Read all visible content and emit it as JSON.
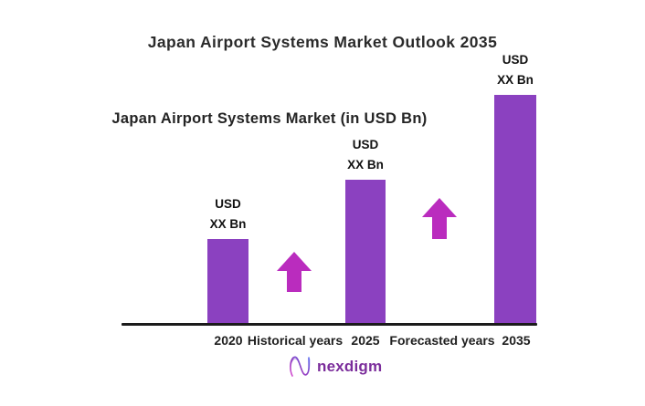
{
  "title": "Japan Airport Systems Market Outlook 2035",
  "subtitle": "Japan Airport Systems Market (in USD Bn)",
  "colors": {
    "bar": "#8B41C0",
    "arrow": "#BA2CBE",
    "axis": "#1B1B1B",
    "logo_text": "#7B2D9B"
  },
  "chart_data": {
    "type": "bar",
    "title": "Japan Airport Systems Market Outlook 2035",
    "subtitle": "Japan Airport Systems Market (in USD Bn)",
    "categories": [
      "2020",
      "2025",
      "2035"
    ],
    "values": [
      "XX",
      "XX",
      "XX"
    ],
    "unit": "USD Bn",
    "relative_heights": [
      0.37,
      0.63,
      1.0
    ],
    "bars": [
      {
        "year": "2020",
        "label_line1": "USD",
        "label_line2": "XX Bn"
      },
      {
        "year": "2025",
        "label_line1": "USD",
        "label_line2": "XX Bn"
      },
      {
        "year": "2035",
        "label_line1": "USD",
        "label_line2": "XX Bn"
      }
    ],
    "period_annotations": [
      {
        "label": "Historical years",
        "between": [
          "2020",
          "2025"
        ]
      },
      {
        "label": "Forecasted years",
        "between": [
          "2025",
          "2035"
        ]
      }
    ],
    "xlabel": "",
    "ylabel": "",
    "grid": false,
    "legend": false
  },
  "logo": {
    "text": "nexdigm"
  }
}
